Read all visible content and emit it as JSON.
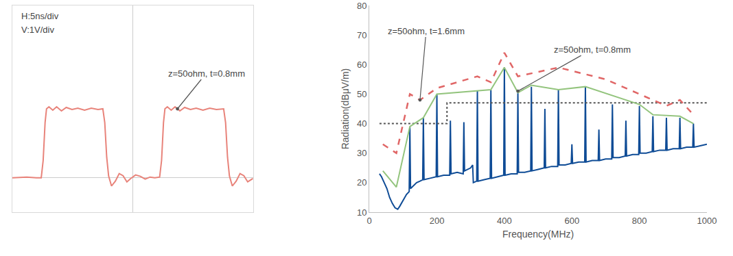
{
  "chart_data": [
    {
      "type": "line",
      "tick_labels": false,
      "grid": false,
      "xlim": [
        -25,
        25
      ],
      "ylim": [
        -1,
        5
      ],
      "annotations": [
        {
          "text": "H:5ns/div"
        },
        {
          "text": "V:1V/div"
        },
        {
          "text": "z=50ohm, t=0.8mm",
          "x": 9.3,
          "y": 2.0
        }
      ],
      "series": [
        {
          "color": "#e8837a",
          "line_style": "solid",
          "x": [
            -25,
            -22,
            -20,
            -19,
            -18.6,
            -18.2,
            -17.9,
            -17.4,
            -16.6,
            -15.8,
            -14.8,
            -13.8,
            -12.6,
            -11.4,
            -10,
            -8.6,
            -7.2,
            -6.2,
            -5.8,
            -5.4,
            -5.0,
            -4.4,
            -3.6,
            -2.8,
            -2.0,
            -1.2,
            -0.4,
            0.6,
            1.6,
            2.6,
            3.6,
            4.6,
            5.6,
            6.0,
            6.4,
            6.7,
            7.2,
            8.0,
            8.8,
            9.8,
            10.8,
            12,
            13.2,
            14.6,
            16,
            17.4,
            18.9,
            19.3,
            19.7,
            20.1,
            20.7,
            21.5,
            22.3,
            23.1,
            23.9,
            25
          ],
          "values": [
            0,
            0.02,
            0,
            0,
            0.5,
            1.6,
            2.0,
            2.06,
            1.96,
            2.06,
            1.94,
            2.04,
            1.98,
            2.02,
            1.96,
            2.02,
            1.98,
            2.0,
            1.6,
            0.6,
            0.05,
            -0.24,
            -0.1,
            0.12,
            0.06,
            -0.12,
            -0.02,
            0.08,
            0.04,
            -0.04,
            0.02,
            0,
            0.02,
            0.5,
            1.6,
            2.0,
            2.06,
            1.96,
            2.06,
            1.94,
            2.04,
            1.98,
            2.02,
            1.96,
            2.02,
            1.98,
            2.0,
            1.6,
            0.6,
            0.05,
            -0.24,
            -0.1,
            0.12,
            0.06,
            -0.12,
            -0.02
          ]
        }
      ]
    },
    {
      "type": "line",
      "grid": false,
      "x_label": "Frequency(MHz)",
      "y_label": "Radiation(dBμV/m)",
      "xlim": [
        0,
        1000
      ],
      "ylim": [
        10,
        80
      ],
      "xticks": [
        0,
        200,
        400,
        600,
        800,
        1000
      ],
      "yticks": [
        10,
        20,
        30,
        40,
        50,
        60,
        70,
        80
      ],
      "annotations": [
        {
          "text": "z=50ohm, t=1.6mm",
          "x": 150,
          "y": 48
        },
        {
          "text": "z=50ohm, t=0.8mm",
          "x": 440,
          "y": 51
        }
      ],
      "series": [
        {
          "color": "#0f4c96",
          "line_style": "solid",
          "x": [
            30,
            36,
            44,
            52,
            60,
            68,
            76,
            84,
            90,
            100,
            110,
            118,
            120,
            122,
            130,
            140,
            150,
            158,
            160,
            162,
            180,
            198,
            200,
            202,
            220,
            238,
            240,
            242,
            260,
            278,
            280,
            282,
            300,
            306,
            308,
            318,
            320,
            322,
            340,
            358,
            360,
            362,
            380,
            398,
            400,
            402,
            420,
            438,
            440,
            442,
            460,
            478,
            480,
            482,
            500,
            518,
            520,
            522,
            540,
            558,
            560,
            562,
            580,
            598,
            600,
            602,
            620,
            638,
            640,
            642,
            660,
            678,
            680,
            682,
            700,
            718,
            720,
            722,
            740,
            758,
            760,
            762,
            780,
            798,
            800,
            802,
            820,
            838,
            840,
            842,
            860,
            878,
            880,
            882,
            900,
            918,
            920,
            922,
            940,
            958,
            960,
            962,
            980,
            1000
          ],
          "values": [
            23,
            22,
            20,
            18,
            15,
            13,
            11.5,
            11,
            12,
            14,
            16,
            17,
            39,
            18,
            19,
            20,
            20.5,
            21,
            42,
            21,
            21.5,
            22,
            50,
            22,
            22.5,
            22.5,
            41,
            23,
            23.5,
            23,
            40.5,
            24,
            25,
            26,
            20,
            20.5,
            51,
            20.5,
            21,
            21.5,
            51.5,
            21.5,
            22,
            22.5,
            59,
            22.5,
            23,
            23,
            50.5,
            23.5,
            23.5,
            24,
            52.5,
            24,
            24.5,
            25,
            45,
            25,
            25.5,
            25.5,
            51.5,
            26,
            26,
            26.5,
            33,
            26.5,
            27,
            27,
            52.5,
            27,
            27.5,
            27.5,
            38,
            27.5,
            28,
            28,
            46.5,
            28.5,
            28.5,
            29,
            41,
            29,
            29.5,
            29.5,
            46,
            30,
            30,
            30.5,
            42.5,
            30.5,
            31,
            31,
            42,
            31,
            31.5,
            31.5,
            42,
            31.5,
            32,
            32,
            40,
            32,
            32.5,
            33
          ]
        },
        {
          "color": "#555555",
          "line_style": "dotted",
          "x": [
            30,
            230,
            230,
            1000
          ],
          "values": [
            40,
            40,
            47,
            47
          ]
        },
        {
          "color": "#93c47d",
          "line_style": "solid",
          "x": [
            40,
            80,
            120,
            160,
            200,
            360,
            400,
            440,
            480,
            560,
            640,
            800,
            840,
            920,
            960
          ],
          "values": [
            24,
            18.5,
            39,
            42,
            50,
            51.5,
            59,
            50.5,
            53,
            51.5,
            52.5,
            46.5,
            43,
            42.5,
            40
          ]
        },
        {
          "color": "#e06666",
          "line_style": "dashed",
          "x": [
            40,
            80,
            120,
            150,
            200,
            320,
            360,
            400,
            440,
            560,
            700,
            800,
            880,
            920,
            960
          ],
          "values": [
            33,
            30,
            50,
            48,
            52,
            56,
            54,
            64,
            56,
            59,
            55,
            50,
            46,
            48,
            43
          ]
        }
      ]
    }
  ]
}
